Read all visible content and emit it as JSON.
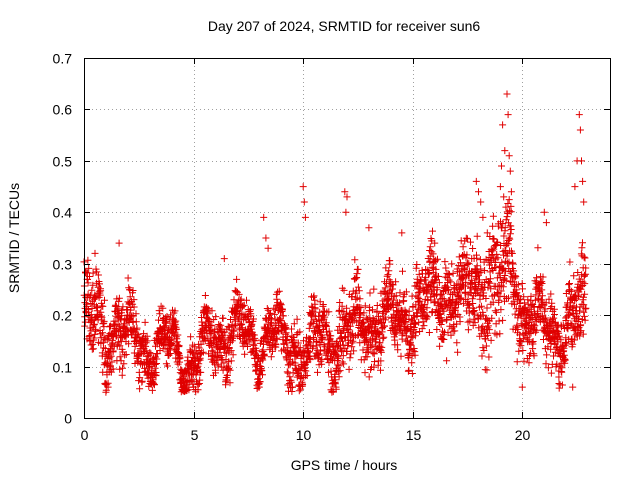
{
  "chart_data": {
    "type": "scatter",
    "title": "Day 207 of 2024, SRMTID for receiver sun6",
    "xlabel": "GPS time / hours",
    "ylabel": "SRMTID / TECUs",
    "xlim": [
      0,
      24
    ],
    "ylim": [
      0,
      0.7
    ],
    "xticks": [
      0,
      5,
      10,
      15,
      20
    ],
    "xtick_labels": [
      "0",
      "5",
      "10",
      "15",
      "20"
    ],
    "yticks": [
      0,
      0.1,
      0.2,
      0.3,
      0.4,
      0.5,
      0.6,
      0.7
    ],
    "ytick_labels": [
      "0",
      "0.1",
      "0.2",
      "0.3",
      "0.4",
      "0.5",
      "0.6",
      "0.7"
    ],
    "grid": true,
    "marker": "plus",
    "marker_color": "#e00000",
    "series_name": "SRMTID",
    "seed": 207,
    "points_per_hour": 130,
    "x_end": 22.9,
    "baseline_anchors": {
      "x": [
        0,
        0.5,
        1,
        1.5,
        2,
        3,
        4,
        5,
        6,
        7,
        8,
        8.5,
        9,
        10,
        11,
        12,
        13,
        14,
        15,
        16,
        17,
        18,
        19,
        19.5,
        20,
        21,
        22,
        22.9
      ],
      "y": [
        0.2,
        0.19,
        0.15,
        0.2,
        0.15,
        0.13,
        0.14,
        0.1,
        0.16,
        0.17,
        0.14,
        0.18,
        0.14,
        0.13,
        0.14,
        0.17,
        0.18,
        0.19,
        0.2,
        0.24,
        0.24,
        0.24,
        0.28,
        0.3,
        0.2,
        0.18,
        0.17,
        0.22
      ]
    },
    "spread_anchors": {
      "x": [
        0,
        1,
        2,
        4,
        6,
        8,
        9,
        10,
        12,
        14,
        15,
        16,
        18,
        19,
        20,
        22,
        22.9
      ],
      "y": [
        0.07,
        0.06,
        0.05,
        0.04,
        0.05,
        0.04,
        0.05,
        0.05,
        0.06,
        0.06,
        0.06,
        0.07,
        0.08,
        0.1,
        0.06,
        0.06,
        0.08
      ]
    },
    "outliers": [
      {
        "x": 8.2,
        "y": 0.39
      },
      {
        "x": 8.3,
        "y": 0.35
      },
      {
        "x": 8.4,
        "y": 0.33
      },
      {
        "x": 10.0,
        "y": 0.45
      },
      {
        "x": 10.05,
        "y": 0.42
      },
      {
        "x": 10.1,
        "y": 0.39
      },
      {
        "x": 11.9,
        "y": 0.44
      },
      {
        "x": 11.95,
        "y": 0.4
      },
      {
        "x": 12.0,
        "y": 0.43
      },
      {
        "x": 13.0,
        "y": 0.37
      },
      {
        "x": 14.5,
        "y": 0.36
      },
      {
        "x": 16.0,
        "y": 0.34
      },
      {
        "x": 17.9,
        "y": 0.46
      },
      {
        "x": 18.0,
        "y": 0.44
      },
      {
        "x": 18.1,
        "y": 0.42
      },
      {
        "x": 18.2,
        "y": 0.39
      },
      {
        "x": 18.4,
        "y": 0.36
      },
      {
        "x": 19.0,
        "y": 0.45
      },
      {
        "x": 19.05,
        "y": 0.49
      },
      {
        "x": 19.1,
        "y": 0.57
      },
      {
        "x": 19.15,
        "y": 0.43
      },
      {
        "x": 19.2,
        "y": 0.52
      },
      {
        "x": 19.25,
        "y": 0.41
      },
      {
        "x": 19.3,
        "y": 0.63
      },
      {
        "x": 19.35,
        "y": 0.59
      },
      {
        "x": 19.4,
        "y": 0.51
      },
      {
        "x": 19.45,
        "y": 0.48
      },
      {
        "x": 19.5,
        "y": 0.44
      },
      {
        "x": 21.0,
        "y": 0.4
      },
      {
        "x": 21.1,
        "y": 0.38
      },
      {
        "x": 22.4,
        "y": 0.45
      },
      {
        "x": 22.5,
        "y": 0.5
      },
      {
        "x": 22.6,
        "y": 0.59
      },
      {
        "x": 22.65,
        "y": 0.56
      },
      {
        "x": 22.7,
        "y": 0.5
      },
      {
        "x": 22.75,
        "y": 0.46
      },
      {
        "x": 22.8,
        "y": 0.42
      },
      {
        "x": 1.0,
        "y": 0.05
      },
      {
        "x": 1.1,
        "y": 0.06
      },
      {
        "x": 5.0,
        "y": 0.06
      },
      {
        "x": 8.0,
        "y": 0.06
      },
      {
        "x": 9.5,
        "y": 0.06
      },
      {
        "x": 11.5,
        "y": 0.06
      },
      {
        "x": 20.0,
        "y": 0.06
      },
      {
        "x": 22.3,
        "y": 0.06
      },
      {
        "x": 1.6,
        "y": 0.34
      },
      {
        "x": 0.5,
        "y": 0.32
      },
      {
        "x": 6.4,
        "y": 0.31
      }
    ]
  }
}
